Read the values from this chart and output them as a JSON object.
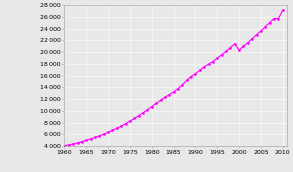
{
  "title": "",
  "xlabel": "",
  "ylabel": "",
  "xlim": [
    1960,
    2011
  ],
  "ylim": [
    4000,
    28000
  ],
  "yticks": [
    4000,
    6000,
    8000,
    10000,
    12000,
    14000,
    16000,
    18000,
    20000,
    22000,
    24000,
    26000,
    28000
  ],
  "xticks": [
    1960,
    1965,
    1970,
    1975,
    1980,
    1985,
    1990,
    1995,
    2000,
    2005,
    2010
  ],
  "line_color": "#ff00ff",
  "line_width": 0.8,
  "marker": ".",
  "marker_size": 1.8,
  "background_color": "#e8e8e8",
  "grid_color": "#ffffff",
  "tick_fontsize": 4.5,
  "years": [
    1960,
    1961,
    1962,
    1963,
    1964,
    1965,
    1966,
    1967,
    1968,
    1969,
    1970,
    1971,
    1972,
    1973,
    1974,
    1975,
    1976,
    1977,
    1978,
    1979,
    1980,
    1981,
    1982,
    1983,
    1984,
    1985,
    1986,
    1987,
    1988,
    1989,
    1990,
    1991,
    1992,
    1993,
    1994,
    1995,
    1996,
    1997,
    1998,
    1999,
    2000,
    2001,
    2002,
    2003,
    2004,
    2005,
    2006,
    2007,
    2008,
    2009,
    2010
  ],
  "population": [
    4075,
    4219,
    4386,
    4573,
    4775,
    4995,
    5233,
    5489,
    5764,
    6056,
    6368,
    6700,
    7055,
    7433,
    7836,
    8263,
    8715,
    9190,
    9688,
    10208,
    10749,
    11290,
    11819,
    12301,
    12766,
    13245,
    13792,
    14452,
    15185,
    15859,
    16348,
    16927,
    17504,
    17949,
    18411,
    18977,
    19550,
    20126,
    20788,
    21407,
    20346,
    21028,
    21607,
    22324,
    22973,
    23613,
    24323,
    25029,
    25722,
    25721,
    27136
  ]
}
